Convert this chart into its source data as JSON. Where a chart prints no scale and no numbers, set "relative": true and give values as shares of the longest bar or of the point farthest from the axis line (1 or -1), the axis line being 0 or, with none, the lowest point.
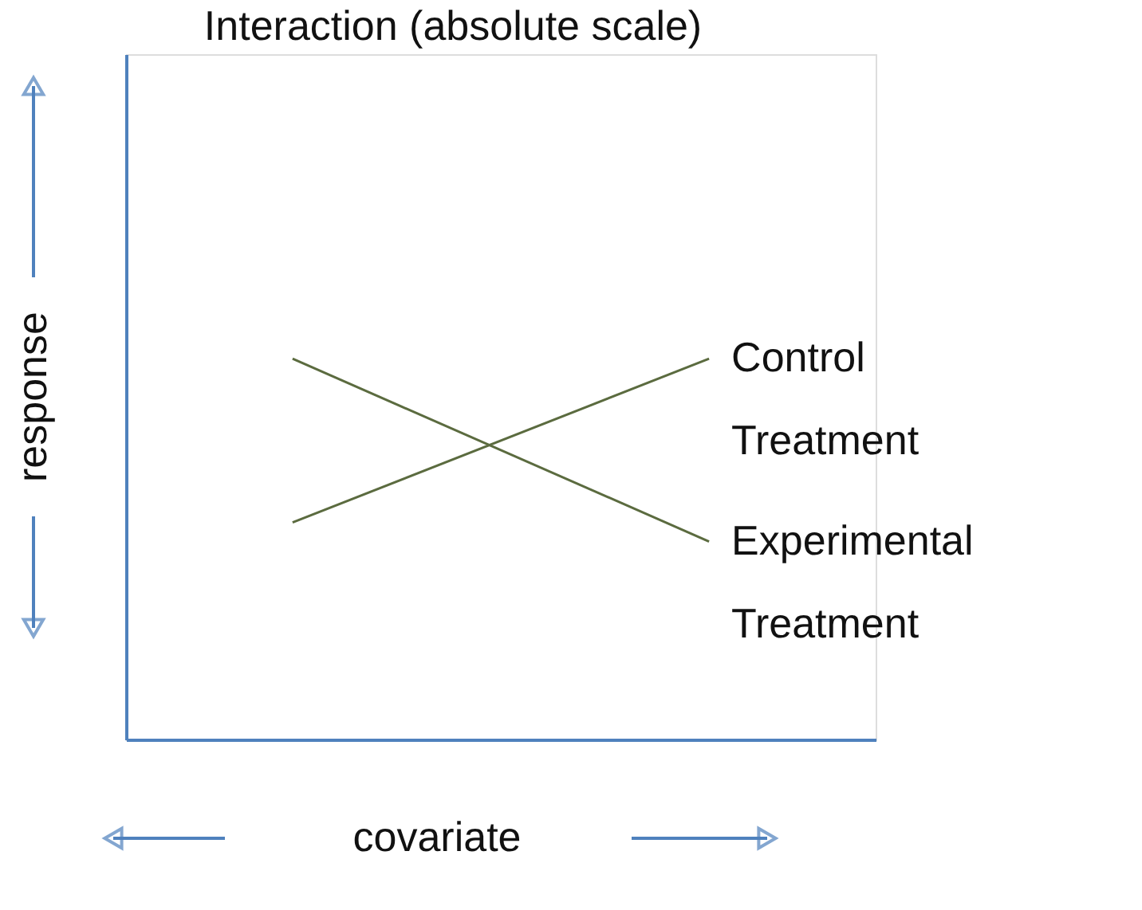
{
  "chart_data": {
    "type": "line",
    "title": "Interaction (absolute scale)",
    "xlabel": "covariate",
    "ylabel": "response",
    "relative": true,
    "categories": [
      null,
      null
    ],
    "series": [
      {
        "name": "Control Treatment",
        "color": "#5b6b3f",
        "values": [
          0.57,
          1
        ]
      },
      {
        "name": "Experimental Treatment",
        "color": "#5b6b3f",
        "values": [
          1,
          0.52
        ]
      }
    ],
    "grid": false,
    "tick_labels": false
  }
}
